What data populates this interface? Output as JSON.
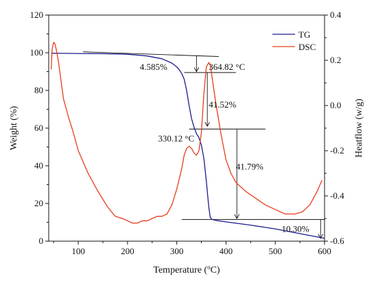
{
  "chart_data": {
    "type": "line",
    "xlabel_prefix": "Temperature (",
    "xlabel_sup": "o",
    "xlabel_suffix": "C)",
    "ylabel": "Weight (%)",
    "y2label": "Heatflow (w/g)",
    "xlim": [
      40,
      600
    ],
    "ylim": [
      0,
      120
    ],
    "y2lim": [
      -0.6,
      0.4
    ],
    "xticks": [
      100,
      200,
      300,
      400,
      500,
      600
    ],
    "yticks": [
      0,
      20,
      40,
      60,
      80,
      100,
      120
    ],
    "y2ticks": [
      -0.6,
      -0.4,
      -0.2,
      0.0,
      0.2,
      0.4
    ],
    "xtick_labels": [
      "100",
      "200",
      "300",
      "400",
      "500",
      "600"
    ],
    "ytick_labels": [
      "0",
      "20",
      "40",
      "60",
      "80",
      "100",
      "120"
    ],
    "y2tick_labels": [
      "-0.6",
      "-0.4",
      "-0.2",
      "0.0",
      "0.2",
      "0.4"
    ],
    "legend": {
      "placement": "top-right",
      "entries": [
        {
          "name": "TG",
          "color": "#1a1a8c"
        },
        {
          "name": "DSC",
          "color": "#e63c1e"
        }
      ]
    },
    "series": [
      {
        "name": "TG",
        "axis": "left",
        "color": "#1a1a8c",
        "x": [
          45,
          100,
          150,
          200,
          240,
          270,
          290,
          300,
          305,
          310,
          315,
          320,
          325,
          330,
          335,
          340,
          345,
          350,
          355,
          360,
          365,
          368,
          372,
          380,
          400,
          450,
          500,
          550,
          600
        ],
        "y": [
          99.8,
          99.6,
          99.5,
          99.2,
          98.3,
          96.8,
          94.5,
          92.5,
          91,
          89,
          86,
          80,
          72,
          65,
          60.5,
          57,
          55,
          51,
          44,
          32,
          18,
          12.5,
          11.5,
          11,
          10.2,
          8.5,
          6.5,
          4,
          1.5
        ]
      },
      {
        "name": "DSC",
        "axis": "right",
        "color": "#e63c1e",
        "x": [
          45,
          47,
          50,
          53,
          56,
          60,
          65,
          70,
          80,
          90,
          100,
          120,
          140,
          160,
          175,
          190,
          200,
          210,
          220,
          230,
          240,
          250,
          260,
          270,
          280,
          290,
          300,
          310,
          315,
          320,
          325,
          330,
          335,
          340,
          345,
          350,
          355,
          360,
          365,
          368,
          372,
          380,
          390,
          400,
          410,
          420,
          440,
          460,
          480,
          500,
          520,
          540,
          555,
          570,
          585,
          595
        ],
        "y": [
          0.16,
          0.25,
          0.28,
          0.27,
          0.24,
          0.19,
          0.11,
          0.03,
          -0.05,
          -0.12,
          -0.2,
          -0.3,
          -0.38,
          -0.45,
          -0.49,
          -0.5,
          -0.51,
          -0.52,
          -0.52,
          -0.51,
          -0.51,
          -0.5,
          -0.49,
          -0.49,
          -0.48,
          -0.44,
          -0.37,
          -0.28,
          -0.22,
          -0.19,
          -0.18,
          -0.19,
          -0.21,
          -0.22,
          -0.2,
          -0.12,
          0.05,
          0.17,
          0.19,
          0.18,
          0.12,
          0.0,
          -0.13,
          -0.24,
          -0.3,
          -0.34,
          -0.38,
          -0.41,
          -0.44,
          -0.46,
          -0.48,
          -0.48,
          -0.47,
          -0.44,
          -0.38,
          -0.33
        ]
      }
    ],
    "annotations": {
      "step1": {
        "label": "4.585%",
        "x": 225,
        "y": 91
      },
      "temp1": {
        "label": "364.82 °C",
        "x": 365,
        "y": 91
      },
      "step2": {
        "label": "41.52%",
        "x": 365,
        "y": 71
      },
      "temp2": {
        "label": "330.12 °C",
        "x": 262,
        "y": 53
      },
      "step3": {
        "label": "41.79%",
        "x": 420,
        "y": 38
      },
      "step4": {
        "label": "10.30%",
        "x": 513,
        "y": 5
      }
    },
    "guide_lines": [
      {
        "x1": 110,
        "y1": 100.5,
        "x2": 385,
        "y2": 98
      },
      {
        "x1": 315,
        "y1": 89.5,
        "x2": 420,
        "y2": 89.5
      },
      {
        "x1": 325,
        "y1": 59.5,
        "x2": 480,
        "y2": 59.5
      },
      {
        "x1": 310,
        "y1": 11.5,
        "x2": 600,
        "y2": 11.5
      }
    ],
    "arrows": [
      {
        "x": 340,
        "y1": 98.5,
        "y2": 90
      },
      {
        "x": 362,
        "y1": 89.5,
        "y2": 61
      },
      {
        "x": 422,
        "y1": 59.5,
        "y2": 12
      },
      {
        "x": 592,
        "y1": 11.5,
        "y2": 1.5
      }
    ]
  }
}
